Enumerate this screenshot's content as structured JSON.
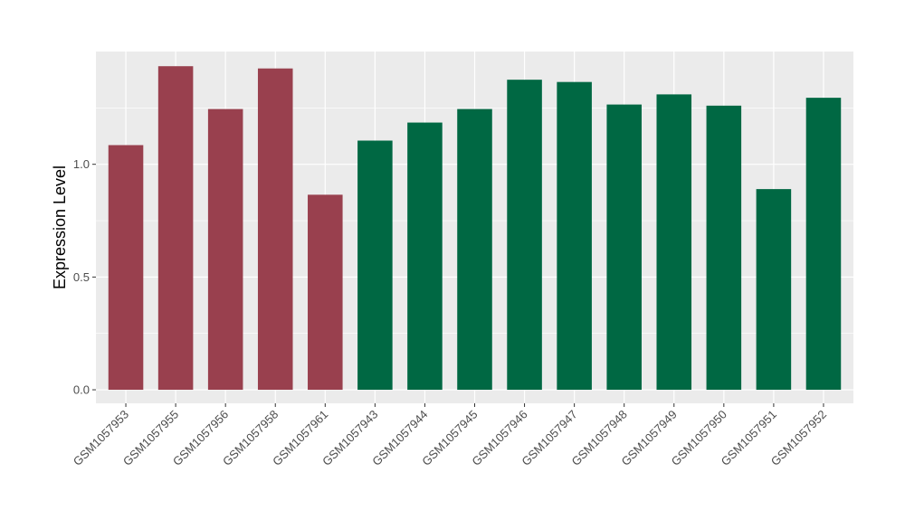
{
  "chart_data": {
    "type": "bar",
    "title": "",
    "xlabel": "",
    "ylabel": "Expression Level",
    "ylim": [
      -0.06,
      1.5
    ],
    "yticks": [
      0.0,
      0.5,
      1.0
    ],
    "ytick_labels": [
      "0.0",
      "0.5",
      "1.0"
    ],
    "grid": true,
    "legend": "none",
    "panel_color": "#ebebeb",
    "categories": [
      "GSM1057953",
      "GSM1057955",
      "GSM1057956",
      "GSM1057958",
      "GSM1057961",
      "GSM1057943",
      "GSM1057944",
      "GSM1057945",
      "GSM1057946",
      "GSM1057947",
      "GSM1057948",
      "GSM1057949",
      "GSM1057950",
      "GSM1057951",
      "GSM1057952"
    ],
    "values": [
      1.085,
      1.435,
      1.245,
      1.425,
      0.865,
      1.105,
      1.185,
      1.245,
      1.375,
      1.365,
      1.265,
      1.31,
      1.26,
      0.89,
      1.295
    ],
    "bar_colors": [
      "#99404e",
      "#99404e",
      "#99404e",
      "#99404e",
      "#99404e",
      "#006843",
      "#006843",
      "#006843",
      "#006843",
      "#006843",
      "#006843",
      "#006843",
      "#006843",
      "#006843",
      "#006843"
    ]
  }
}
